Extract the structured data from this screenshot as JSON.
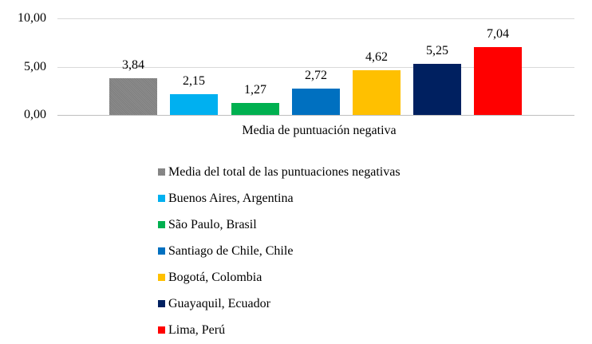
{
  "chart_data": {
    "type": "bar",
    "title": "",
    "xlabel": "Media de puntuación negativa",
    "ylabel": "",
    "ylim": [
      0,
      10
    ],
    "yticks": [
      "0,00",
      "5,00",
      "10,00"
    ],
    "grid": true,
    "legend_position": "bottom",
    "categories": [
      "Media de puntuación negativa"
    ],
    "series": [
      {
        "name": "Media del total de las puntuaciones negativas",
        "values": [
          3.84
        ],
        "label": "3,84",
        "color": "#808080"
      },
      {
        "name": "Buenos Aires, Argentina",
        "values": [
          2.15
        ],
        "label": "2,15",
        "color": "#00B0F0"
      },
      {
        "name": "São Paulo, Brasil",
        "values": [
          1.27
        ],
        "label": "1,27",
        "color": "#00B050"
      },
      {
        "name": "Santiago de Chile, Chile",
        "values": [
          2.72
        ],
        "label": "2,72",
        "color": "#0070C0"
      },
      {
        "name": "Bogotá, Colombia",
        "values": [
          4.62
        ],
        "label": "4,62",
        "color": "#FFC000"
      },
      {
        "name": "Guayaquil, Ecuador",
        "values": [
          5.25
        ],
        "label": "5,25",
        "color": "#002060"
      },
      {
        "name": "Lima, Perú",
        "values": [
          7.04
        ],
        "label": "7,04",
        "color": "#FF0000"
      }
    ]
  }
}
